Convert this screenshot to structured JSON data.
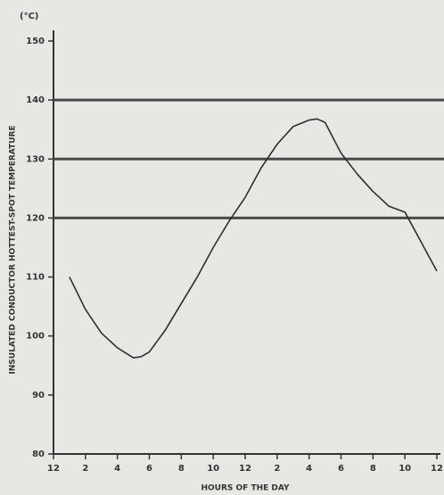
{
  "chart_data": {
    "type": "line",
    "y_unit": "(°C)",
    "ylabel": "INSULATED CONDUCTOR HOTTEST-SPOT TEMPERATURE",
    "xlabel": "HOURS OF THE DAY",
    "x": [
      1,
      2,
      3,
      4,
      5,
      5.5,
      6,
      7,
      8,
      9,
      10,
      11,
      12,
      13,
      14,
      15,
      16,
      16.5,
      17,
      18,
      19,
      20,
      21,
      22,
      23,
      24
    ],
    "values": [
      110,
      104.5,
      100.5,
      98,
      96.3,
      96.5,
      97.3,
      101,
      105.5,
      110,
      115,
      119.5,
      123.5,
      128.5,
      132.5,
      135.5,
      136.6,
      136.8,
      136.2,
      131,
      127.5,
      124.5,
      122,
      121,
      116,
      111
    ],
    "color": "#2e2e2e",
    "reference_lines": [
      120,
      130,
      140
    ],
    "xlim": [
      0,
      24
    ],
    "xticks": [
      {
        "value": 0,
        "label": "12"
      },
      {
        "value": 2,
        "label": "2"
      },
      {
        "value": 4,
        "label": "4"
      },
      {
        "value": 6,
        "label": "6"
      },
      {
        "value": 8,
        "label": "8"
      },
      {
        "value": 10,
        "label": "10"
      },
      {
        "value": 12,
        "label": "12"
      },
      {
        "value": 14,
        "label": "2"
      },
      {
        "value": 16,
        "label": "4"
      },
      {
        "value": 18,
        "label": "6"
      },
      {
        "value": 20,
        "label": "8"
      },
      {
        "value": 22,
        "label": "10"
      },
      {
        "value": 24,
        "label": "12"
      }
    ],
    "ylim": [
      80,
      150
    ],
    "yticks": [
      80,
      90,
      100,
      110,
      120,
      130,
      140,
      150
    ]
  }
}
